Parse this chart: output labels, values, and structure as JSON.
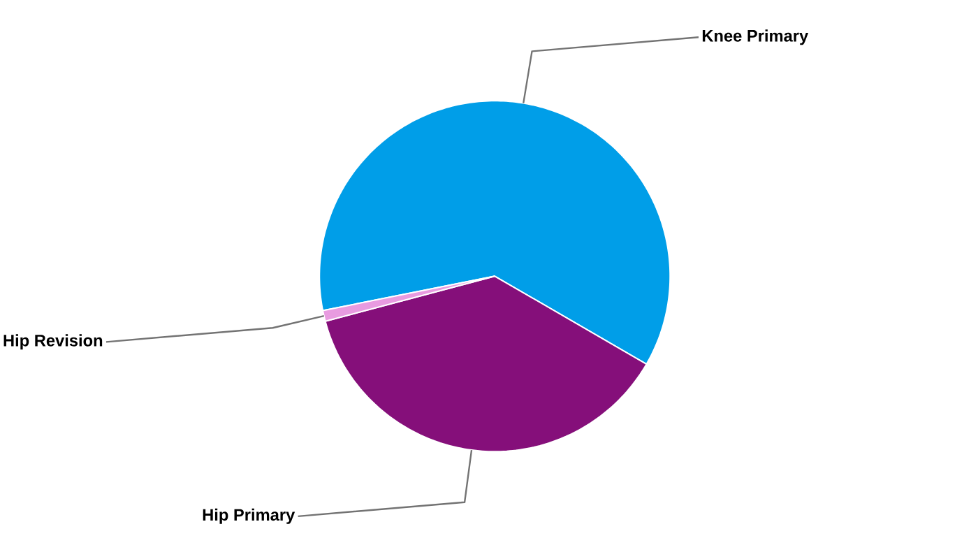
{
  "chart_data": {
    "type": "pie",
    "categories": [
      "Knee Primary",
      "Hip Primary",
      "Hip Revision"
    ],
    "values": [
      61.5,
      37.5,
      1
    ],
    "colors": [
      "#009ee8",
      "#850f7a",
      "#e89be0"
    ]
  }
}
